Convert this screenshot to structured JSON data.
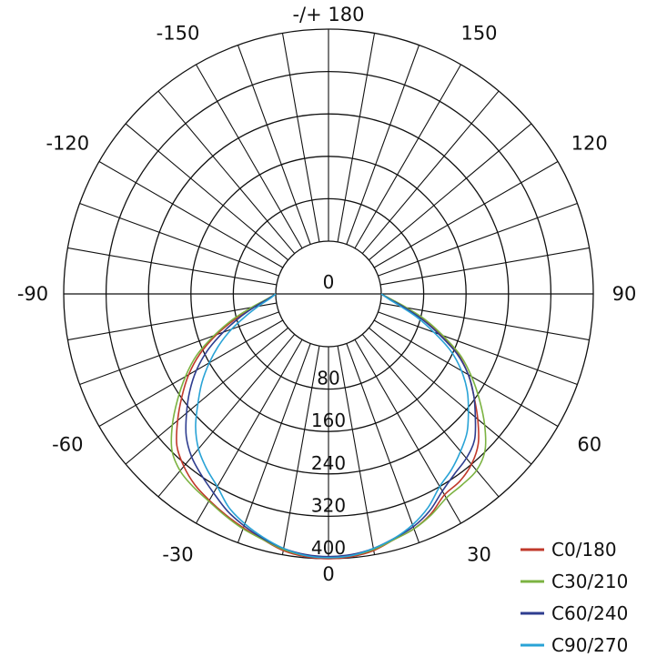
{
  "chart_data": {
    "type": "polar-line",
    "title": "",
    "angle_labels": [
      {
        "angle": 180,
        "text": "-/+ 180"
      },
      {
        "angle": -150,
        "text": "-150"
      },
      {
        "angle": 150,
        "text": "150"
      },
      {
        "angle": -120,
        "text": "-120"
      },
      {
        "angle": 120,
        "text": "120"
      },
      {
        "angle": -90,
        "text": "-90"
      },
      {
        "angle": 90,
        "text": "90"
      },
      {
        "angle": -60,
        "text": "-60"
      },
      {
        "angle": 60,
        "text": "60"
      },
      {
        "angle": -30,
        "text": "-30"
      },
      {
        "angle": 30,
        "text": "30"
      },
      {
        "angle": 0,
        "text": "0"
      }
    ],
    "radial_ticks": [
      0,
      80,
      160,
      240,
      320,
      400
    ],
    "radial_tick_labels": [
      "0",
      "80",
      "160",
      "240",
      "320",
      "400"
    ],
    "radial_max": 400,
    "angle_step": 10,
    "series": [
      {
        "name": "C0/180",
        "color": "#c0392b",
        "angles": [
          0,
          5,
          10,
          15,
          20,
          25,
          30,
          35,
          40,
          45,
          50,
          55,
          60,
          65,
          70,
          75,
          80,
          85,
          90
        ],
        "right": [
          400,
          398,
          392,
          380,
          372,
          358,
          338,
          332,
          320,
          300,
          268,
          235,
          205,
          170,
          125,
          85,
          48,
          18,
          0
        ],
        "left": [
          400,
          398,
          392,
          380,
          370,
          360,
          350,
          340,
          325,
          305,
          272,
          238,
          205,
          168,
          125,
          82,
          45,
          17,
          0
        ]
      },
      {
        "name": "C30/210",
        "color": "#7cb342",
        "angles": [
          0,
          5,
          10,
          15,
          20,
          25,
          30,
          35,
          40,
          45,
          50,
          55,
          60,
          65,
          70,
          75,
          80,
          85,
          90
        ],
        "right": [
          398,
          396,
          390,
          380,
          372,
          360,
          345,
          340,
          335,
          318,
          285,
          248,
          212,
          175,
          130,
          90,
          50,
          20,
          0
        ],
        "left": [
          398,
          396,
          390,
          380,
          372,
          362,
          352,
          345,
          336,
          318,
          285,
          248,
          212,
          175,
          130,
          88,
          48,
          18,
          0
        ]
      },
      {
        "name": "C60/240",
        "color": "#2e3d8f",
        "angles": [
          0,
          5,
          10,
          15,
          20,
          25,
          30,
          35,
          40,
          45,
          50,
          55,
          60,
          65,
          70,
          75,
          80,
          85,
          90
        ],
        "right": [
          396,
          394,
          388,
          378,
          368,
          352,
          330,
          315,
          305,
          290,
          262,
          235,
          205,
          168,
          122,
          82,
          45,
          17,
          0
        ],
        "left": [
          396,
          394,
          388,
          378,
          366,
          352,
          334,
          318,
          302,
          280,
          250,
          220,
          188,
          152,
          112,
          75,
          42,
          16,
          0
        ]
      },
      {
        "name": "C90/270",
        "color": "#29a3d6",
        "angles": [
          0,
          5,
          10,
          15,
          20,
          25,
          30,
          35,
          40,
          45,
          50,
          55,
          60,
          65,
          70,
          75,
          80,
          85,
          90
        ],
        "right": [
          398,
          396,
          388,
          378,
          364,
          345,
          320,
          305,
          288,
          270,
          245,
          220,
          190,
          155,
          112,
          75,
          40,
          15,
          0
        ],
        "left": [
          398,
          396,
          388,
          376,
          362,
          345,
          320,
          302,
          282,
          255,
          222,
          192,
          160,
          128,
          95,
          62,
          35,
          13,
          0
        ]
      }
    ],
    "legend_position": "bottom-right"
  }
}
